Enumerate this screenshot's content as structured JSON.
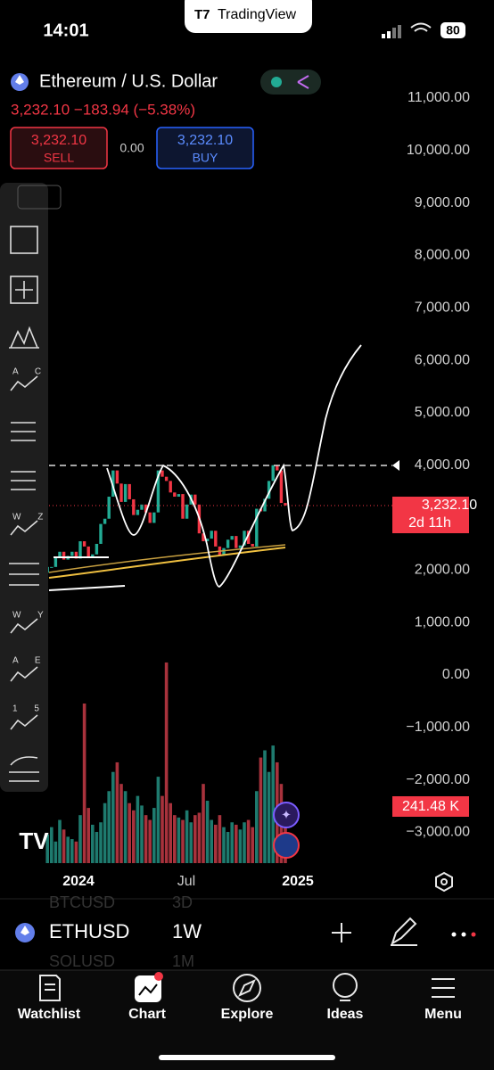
{
  "status_bar": {
    "time": "14:01",
    "brand": "TradingView",
    "battery": "80"
  },
  "header": {
    "symbol_name": "Ethereum / U.S. Dollar",
    "quote": "3,232.10 −183.94 (−5.38%)",
    "sell": {
      "price": "3,232.10",
      "label": "SELL"
    },
    "spread": "0.00",
    "buy": {
      "price": "3,232.10",
      "label": "BUY"
    }
  },
  "toolbar": [
    "A C",
    "W Z",
    "W Y",
    "A E",
    "1 5"
  ],
  "chart": {
    "ylim": [
      -3300,
      11800
    ],
    "yticks": [
      {
        "value": 11000,
        "label": "11,000.00"
      },
      {
        "value": 10000,
        "label": "10,000.00"
      },
      {
        "value": 9000,
        "label": "9,000.00"
      },
      {
        "value": 8000,
        "label": "8,000.00"
      },
      {
        "value": 7000,
        "label": "7,000.00"
      },
      {
        "value": 6000,
        "label": "6,000.00"
      },
      {
        "value": 5000,
        "label": "5,000.00"
      },
      {
        "value": 4000,
        "label": "4,000.00"
      },
      {
        "value": 2000,
        "label": "2,000.00"
      },
      {
        "value": 1000,
        "label": "1,000.00"
      },
      {
        "value": 0,
        "label": "0.00"
      },
      {
        "value": -1000,
        "label": "−1,000.00"
      },
      {
        "value": -2000,
        "label": "−2,000.00"
      },
      {
        "value": -3000,
        "label": "−3,000.00"
      }
    ],
    "xlabels": [
      "2024",
      "Jul",
      "2025"
    ],
    "price_tag": {
      "price": "3,232.10",
      "countdown": "2d 11h"
    },
    "volume_tag": "241.48 K",
    "open": 1950,
    "closes": [
      2060,
      2060,
      2250,
      2350,
      2200,
      2270,
      2350,
      2220,
      2550,
      2450,
      2260,
      2300,
      2500,
      2880,
      2980,
      3400,
      3900,
      3650,
      3300,
      3640,
      3350,
      3050,
      3150,
      3250,
      3100,
      2900,
      3100,
      3900,
      3780,
      3700,
      3480,
      3400,
      3450,
      2980,
      3250,
      3440,
      3250,
      2700,
      2550,
      2600,
      2750,
      2450,
      2280,
      2420,
      2580,
      2650,
      2420,
      2470,
      2750,
      2500,
      2450,
      3170,
      3120,
      3360,
      3700,
      4000,
      3900,
      3280,
      3232.1
    ],
    "volumes_k": [
      120,
      150,
      90,
      180,
      140,
      110,
      100,
      90,
      200,
      665,
      230,
      160,
      130,
      170,
      250,
      300,
      380,
      420,
      330,
      300,
      250,
      220,
      280,
      240,
      200,
      180,
      230,
      360,
      280,
      836,
      250,
      200,
      190,
      180,
      220,
      170,
      200,
      210,
      330,
      260,
      180,
      160,
      200,
      150,
      130,
      170,
      160,
      140,
      170,
      180,
      150,
      300,
      440,
      470,
      380,
      490,
      420,
      330,
      241.48
    ]
  },
  "symbol_bar": {
    "symbol": "ETHUSD",
    "interval": "1W",
    "behind": [
      {
        "symbol": "BTCUSD",
        "interval": "3D"
      },
      {
        "symbol": "SOLUSD",
        "interval": "1M"
      }
    ]
  },
  "nav": [
    "Watchlist",
    "Chart",
    "Explore",
    "Ideas",
    "Menu"
  ]
}
